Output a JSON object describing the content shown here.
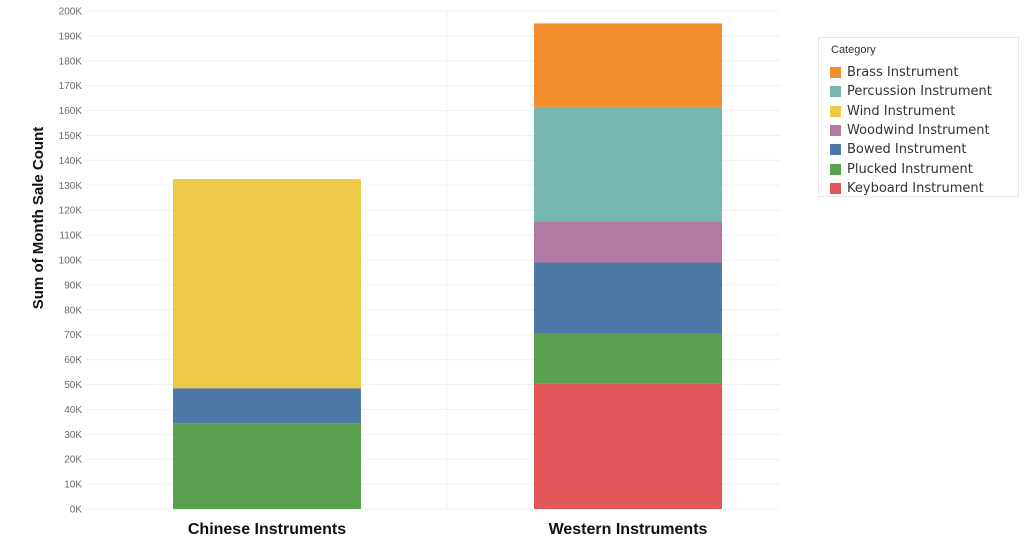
{
  "chart_data": {
    "type": "bar",
    "stacked": true,
    "categories": [
      "Chinese Instruments",
      "Western Instruments"
    ],
    "ylabel": "Sum of Month Sale Count",
    "xlabel": "",
    "ylim": [
      0,
      200000
    ],
    "y_ticks": [
      {
        "value": 0,
        "label": "0K"
      },
      {
        "value": 10000,
        "label": "10K"
      },
      {
        "value": 20000,
        "label": "20K"
      },
      {
        "value": 30000,
        "label": "30K"
      },
      {
        "value": 40000,
        "label": "40K"
      },
      {
        "value": 50000,
        "label": "50K"
      },
      {
        "value": 60000,
        "label": "60K"
      },
      {
        "value": 70000,
        "label": "70K"
      },
      {
        "value": 80000,
        "label": "80K"
      },
      {
        "value": 90000,
        "label": "90K"
      },
      {
        "value": 100000,
        "label": "100K"
      },
      {
        "value": 110000,
        "label": "110K"
      },
      {
        "value": 120000,
        "label": "120K"
      },
      {
        "value": 130000,
        "label": "130K"
      },
      {
        "value": 140000,
        "label": "140K"
      },
      {
        "value": 150000,
        "label": "150K"
      },
      {
        "value": 160000,
        "label": "160K"
      },
      {
        "value": 170000,
        "label": "170K"
      },
      {
        "value": 180000,
        "label": "180K"
      },
      {
        "value": 190000,
        "label": "190K"
      },
      {
        "value": 200000,
        "label": "200K"
      }
    ],
    "series": [
      {
        "name": "Keyboard Instrument",
        "color": "#e15759",
        "values": [
          0,
          50500
        ]
      },
      {
        "name": "Plucked Instrument",
        "color": "#59a14f",
        "values": [
          34500,
          20000
        ]
      },
      {
        "name": "Bowed Instrument",
        "color": "#4e79a7",
        "values": [
          14000,
          28500
        ]
      },
      {
        "name": "Woodwind Instrument",
        "color": "#b07aa1",
        "values": [
          0,
          16500
        ]
      },
      {
        "name": "Wind Instrument",
        "color": "#edc948",
        "values": [
          84000,
          0
        ]
      },
      {
        "name": "Percussion Instrument",
        "color": "#76b7b2",
        "values": [
          0,
          46000
        ]
      },
      {
        "name": "Brass Instrument",
        "color": "#f28e2b",
        "values": [
          0,
          33500
        ]
      }
    ],
    "legend": {
      "title": "Category",
      "position": "right",
      "order": [
        "Brass Instrument",
        "Percussion Instrument",
        "Wind Instrument",
        "Woodwind Instrument",
        "Bowed Instrument",
        "Plucked Instrument",
        "Keyboard Instrument"
      ]
    },
    "grid": true
  }
}
